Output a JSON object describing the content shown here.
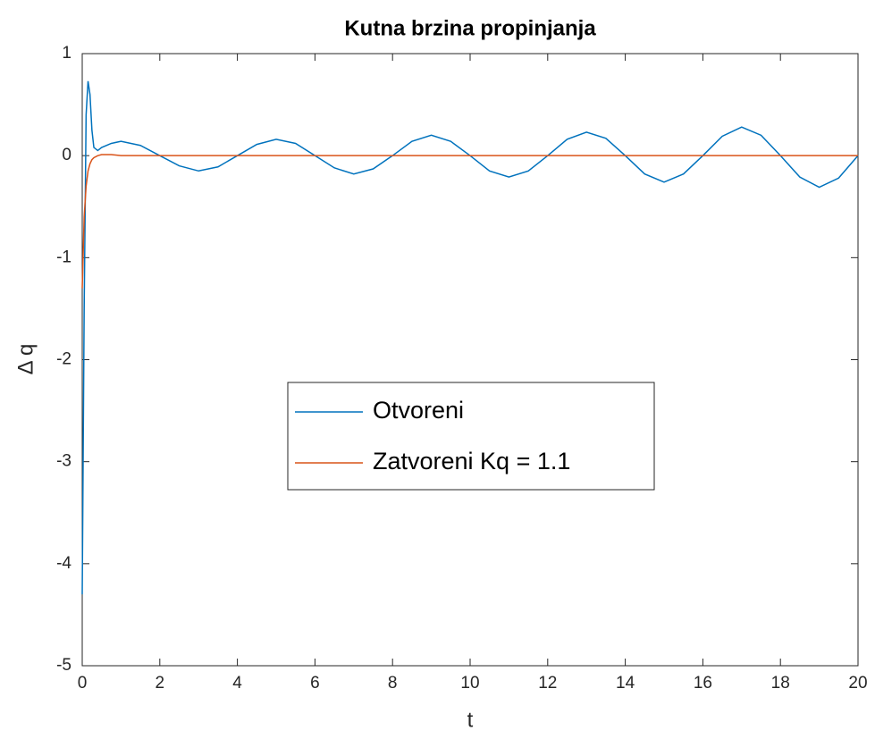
{
  "chart_data": {
    "type": "line",
    "title": "Kutna brzina propinjanja",
    "xlabel": "t",
    "ylabel": "Δ q",
    "x": [
      0,
      0.05,
      0.1,
      0.15,
      0.2,
      0.25,
      0.3,
      0.4,
      0.5,
      0.75,
      1,
      1.5,
      2,
      2.5,
      3,
      3.5,
      4,
      4.5,
      5,
      5.5,
      6,
      6.5,
      7,
      7.5,
      8,
      8.5,
      9,
      9.5,
      10,
      10.5,
      11,
      11.5,
      12,
      12.5,
      13,
      13.5,
      14,
      14.5,
      15,
      15.5,
      16,
      16.5,
      17,
      17.5,
      18,
      18.5,
      19,
      19.5,
      20
    ],
    "series": [
      {
        "name": "Otvoreni",
        "color": "#0072bd",
        "values": [
          -4.3,
          -1.5,
          0.4,
          0.73,
          0.6,
          0.25,
          0.08,
          0.05,
          0.08,
          0.12,
          0.14,
          0.1,
          0,
          -0.1,
          -0.15,
          -0.11,
          0,
          0.11,
          0.16,
          0.12,
          0,
          -0.12,
          -0.18,
          -0.13,
          0,
          0.14,
          0.2,
          0.14,
          0,
          -0.15,
          -0.21,
          -0.15,
          0,
          0.16,
          0.23,
          0.17,
          0,
          -0.18,
          -0.26,
          -0.18,
          0,
          0.19,
          0.28,
          0.2,
          0,
          -0.21,
          -0.31,
          -0.22,
          0
        ]
      },
      {
        "name": "Zatvoreni Kq = 1.1",
        "color": "#d95319",
        "values": [
          -1.3,
          -0.6,
          -0.3,
          -0.15,
          -0.08,
          -0.04,
          -0.02,
          0,
          0.01,
          0.01,
          0,
          0,
          0,
          0,
          0,
          0,
          0,
          0,
          0,
          0,
          0,
          0,
          0,
          0,
          0,
          0,
          0,
          0,
          0,
          0,
          0,
          0,
          0,
          0,
          0,
          0,
          0,
          0,
          0,
          0,
          0,
          0,
          0,
          0,
          0,
          0,
          0,
          0,
          0
        ]
      }
    ],
    "xlim": [
      0,
      20
    ],
    "xticks": [
      0,
      2,
      4,
      6,
      8,
      10,
      12,
      14,
      16,
      18,
      20
    ],
    "ylim": [
      -5,
      1
    ],
    "yticks": [
      -5,
      -4,
      -3,
      -2,
      -1,
      0,
      1
    ],
    "grid": false,
    "legend": "center"
  }
}
